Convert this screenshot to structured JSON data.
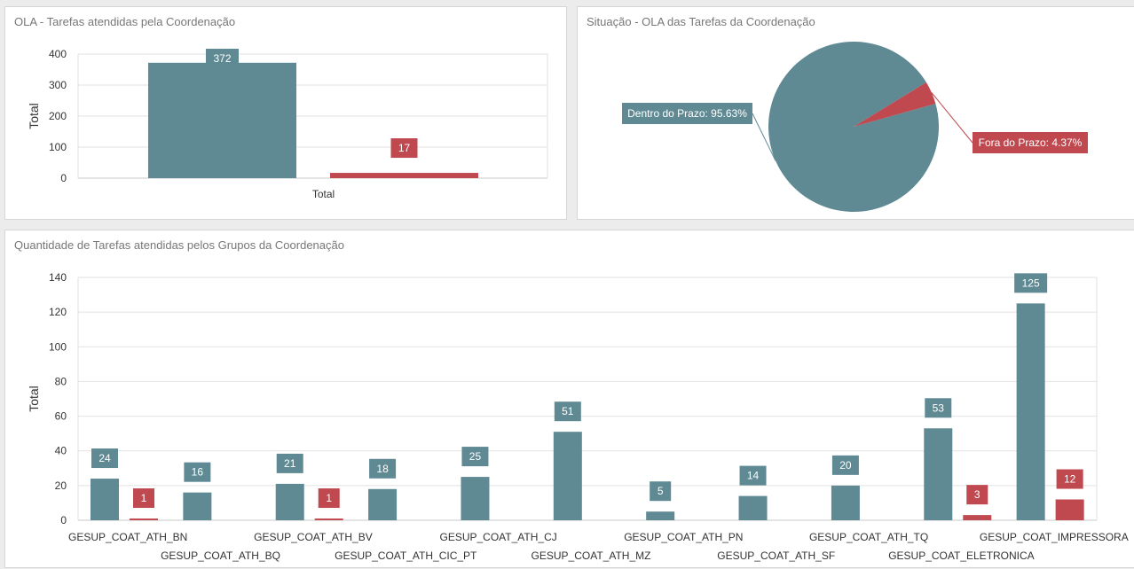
{
  "panels": {
    "total": {
      "title": "OLA - Tarefas atendidas pela Coordenação"
    },
    "situation": {
      "title": "Situação - OLA das Tarefas da Coordenação"
    },
    "groups": {
      "title": "Quantidade de Tarefas atendidas pelos Grupos da Coordenação"
    }
  },
  "colors": {
    "in_time": "#5f8a94",
    "late": "#c0484f",
    "grid": "#e2e2e2",
    "axis_text": "#333333"
  },
  "chart_data": [
    {
      "type": "bar",
      "title": "OLA - Tarefas atendidas pela Coordenação",
      "categories": [
        "Total"
      ],
      "series": [
        {
          "values": [
            372
          ]
        },
        {
          "values": [
            17
          ]
        }
      ],
      "ylabel": "Total",
      "xlabel": "",
      "ylim": [
        0,
        400
      ],
      "yticks": [
        0,
        100,
        200,
        300,
        400
      ],
      "grid": true
    },
    {
      "type": "pie",
      "title": "Situação - OLA das Tarefas da Coordenação",
      "slices": [
        {
          "label": "Dentro do Prazo: 95.63%",
          "value": 95.63
        },
        {
          "label": "Fora do Prazo: 4.37%",
          "value": 4.37
        }
      ]
    },
    {
      "type": "bar",
      "title": "Quantidade de Tarefas atendidas pelos Grupos da Coordenação",
      "categories": [
        "GESUP_COAT_ATH_BN",
        "GESUP_COAT_ATH_BQ",
        "GESUP_COAT_ATH_BV",
        "GESUP_COAT_ATH_CIC_PT",
        "GESUP_COAT_ATH_CJ",
        "GESUP_COAT_ATH_MZ",
        "GESUP_COAT_ATH_PN",
        "GESUP_COAT_ATH_SF",
        "GESUP_COAT_ATH_TQ",
        "GESUP_COAT_ELETRONICA",
        "GESUP_COAT_IMPRESSORA"
      ],
      "series": [
        {
          "values": [
            24,
            16,
            21,
            18,
            25,
            51,
            5,
            14,
            20,
            53,
            125
          ]
        },
        {
          "values": [
            1,
            0,
            1,
            0,
            0,
            0,
            0,
            0,
            0,
            3,
            12
          ]
        }
      ],
      "ylabel": "Total",
      "ylim": [
        0,
        140
      ],
      "yticks": [
        0,
        20,
        40,
        60,
        80,
        100,
        120,
        140
      ],
      "grid": true
    }
  ]
}
